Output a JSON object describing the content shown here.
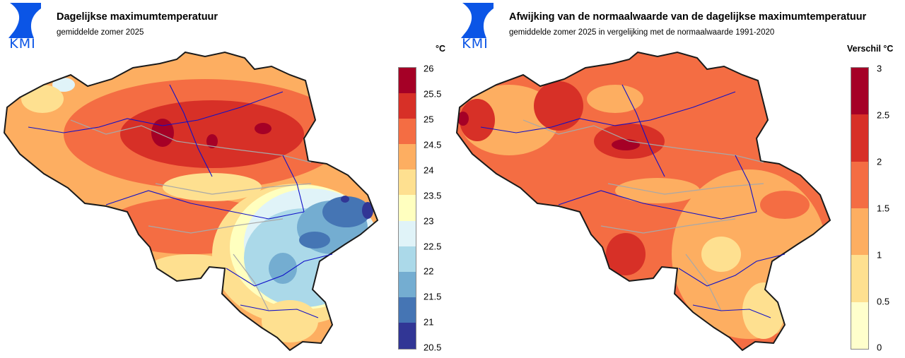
{
  "logo": {
    "text": "KMI",
    "color": "#0b55e6"
  },
  "left": {
    "title": "Dagelijkse maximumtemperatuur",
    "subtitle": "gemiddelde zomer 2025",
    "unit_label": "°C",
    "legend": {
      "ticks": [
        "26",
        "25.5",
        "25",
        "24.5",
        "24",
        "23.5",
        "23",
        "22.5",
        "22",
        "21.5",
        "21",
        "20.5"
      ],
      "colors": [
        "#a50026",
        "#d73027",
        "#f46d43",
        "#fdae61",
        "#fee090",
        "#ffffbf",
        "#e0f3f8",
        "#abd9e9",
        "#74add1",
        "#4575b4",
        "#313695"
      ]
    }
  },
  "right": {
    "title": "Afwijking van de normaalwaarde van de dagelijkse maximumtemperatuur",
    "subtitle": "gemiddelde zomer 2025 in vergelijking met de normaalwaarde 1991-2020",
    "unit_label": "Verschil °C",
    "legend": {
      "ticks": [
        "3",
        "2.5",
        "2",
        "1.5",
        "1",
        "0.5",
        "0"
      ],
      "colors": [
        "#a50026",
        "#d73027",
        "#f46d43",
        "#fdae61",
        "#fee090",
        "#ffffcc"
      ]
    }
  }
}
